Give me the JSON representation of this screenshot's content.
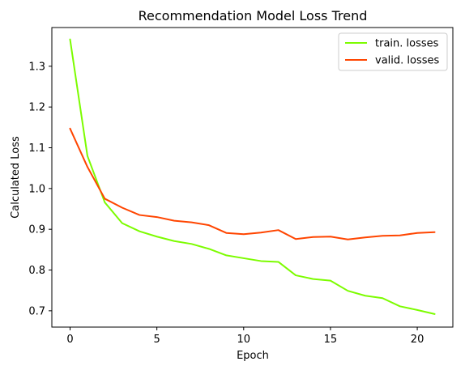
{
  "chart_data": {
    "type": "line",
    "title": "Recommendation Model Loss Trend",
    "xlabel": "Epoch",
    "ylabel": "Calculated Loss",
    "xlim": [
      -1.05,
      22.05
    ],
    "ylim": [
      0.66,
      1.395
    ],
    "xticks": [
      0,
      5,
      10,
      15,
      20
    ],
    "yticks": [
      0.7,
      0.8,
      0.9,
      1.0,
      1.1,
      1.2,
      1.3
    ],
    "grid": false,
    "legend_position": "top-right",
    "x": [
      0,
      1,
      2,
      3,
      4,
      5,
      6,
      7,
      8,
      9,
      10,
      11,
      12,
      13,
      14,
      15,
      16,
      17,
      18,
      19,
      20,
      21
    ],
    "series": [
      {
        "name": "train. losses",
        "color": "#7cfc00",
        "values": [
          1.366,
          1.08,
          0.966,
          0.915,
          0.895,
          0.882,
          0.871,
          0.864,
          0.852,
          0.836,
          0.829,
          0.822,
          0.82,
          0.787,
          0.778,
          0.774,
          0.749,
          0.737,
          0.731,
          0.711,
          0.702,
          0.692
        ]
      },
      {
        "name": "valid. losses",
        "color": "#ff4500",
        "values": [
          1.147,
          1.053,
          0.975,
          0.953,
          0.935,
          0.93,
          0.921,
          0.917,
          0.91,
          0.891,
          0.888,
          0.892,
          0.898,
          0.876,
          0.881,
          0.882,
          0.875,
          0.88,
          0.884,
          0.885,
          0.891,
          0.893
        ]
      }
    ]
  }
}
